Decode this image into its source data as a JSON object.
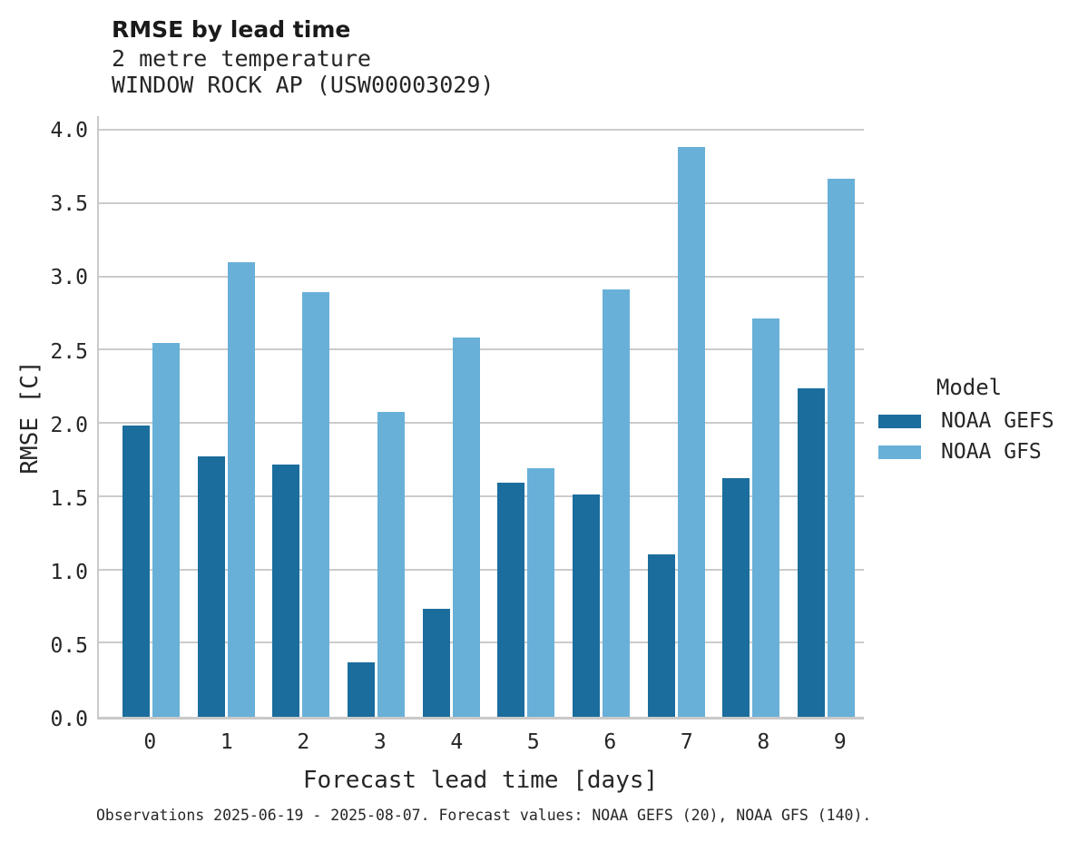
{
  "header": {
    "title": "RMSE by lead time",
    "subtitle_line1": "2 metre temperature",
    "subtitle_line2": "WINDOW ROCK AP (USW00003029)"
  },
  "footer": {
    "caption": "Observations 2025-06-19 - 2025-08-07. Forecast values: NOAA GEFS (20), NOAA GFS (140)."
  },
  "legend": {
    "title": "Model",
    "entries": [
      {
        "label": "NOAA GEFS",
        "color": "#1b6d9d"
      },
      {
        "label": "NOAA GFS",
        "color": "#68b0d8"
      }
    ]
  },
  "chart_data": {
    "type": "bar",
    "title": "RMSE by lead time",
    "subtitle_lines": [
      "2 metre temperature",
      "WINDOW ROCK AP (USW00003029)"
    ],
    "categories": [
      "0",
      "1",
      "2",
      "3",
      "4",
      "5",
      "6",
      "7",
      "8",
      "9"
    ],
    "series": [
      {
        "name": "NOAA GEFS",
        "color": "#1b6d9d",
        "values": [
          1.99,
          1.78,
          1.72,
          0.37,
          0.74,
          1.6,
          1.52,
          1.11,
          1.63,
          2.24
        ]
      },
      {
        "name": "NOAA GFS",
        "color": "#68b0d8",
        "values": [
          2.55,
          3.1,
          2.9,
          2.08,
          2.59,
          1.7,
          2.92,
          3.89,
          2.72,
          3.67
        ]
      }
    ],
    "xlabel": "Forecast lead time [days]",
    "ylabel": "RMSE [C]",
    "ylim": [
      0,
      4.1
    ],
    "yticks": [
      0.0,
      0.5,
      1.0,
      1.5,
      2.0,
      2.5,
      3.0,
      3.5,
      4.0
    ],
    "grid": "horizontal",
    "legend_title": "Model",
    "legend_position": "right",
    "caption": "Observations 2025-06-19 - 2025-08-07. Forecast values: NOAA GEFS (20), NOAA GFS (140)."
  }
}
